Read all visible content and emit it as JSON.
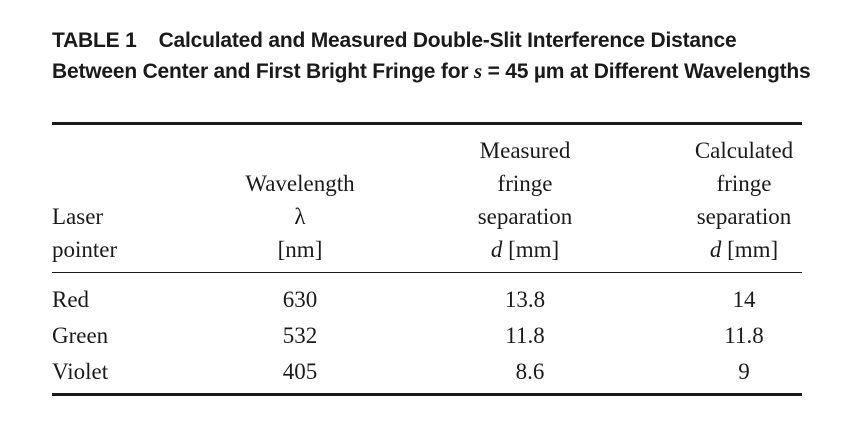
{
  "caption": {
    "table_number": "TABLE 1",
    "title_part1": "Calculated and Measured Double-Slit Interference Distance Between Center and First Bright Fringe for ",
    "symbol": "s",
    "title_part2": " = 45 ",
    "unit": "µm",
    "title_part3": " at Different Wavelengths"
  },
  "headers": {
    "laser": [
      "Laser",
      "pointer"
    ],
    "wavelength": [
      "Wavelength",
      "λ",
      "[nm]"
    ],
    "measured": [
      "Measured",
      "fringe",
      "separation"
    ],
    "measured_var": "d",
    "measured_unit": " [mm]",
    "calculated": [
      "Calculated",
      "fringe",
      "separation"
    ],
    "calculated_var": "d",
    "calculated_unit": " [mm]"
  },
  "rows": [
    {
      "laser": "Red",
      "wavelength": "630",
      "measured": "13.8",
      "calculated": "14"
    },
    {
      "laser": "Green",
      "wavelength": "532",
      "measured": "11.8",
      "calculated": "11.8"
    },
    {
      "laser": "Violet",
      "wavelength": "405",
      "measured": "8.6",
      "calculated": "9"
    }
  ]
}
